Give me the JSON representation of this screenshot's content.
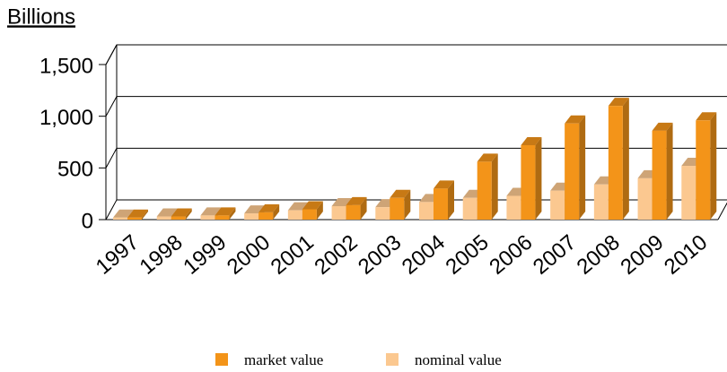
{
  "chart_data": {
    "type": "bar3d",
    "y_label": "Billions",
    "categories": [
      "1997",
      "1998",
      "1999",
      "2000",
      "2001",
      "2002",
      "2003",
      "2004",
      "2005",
      "2006",
      "2007",
      "2008",
      "2009",
      "2010"
    ],
    "series": [
      {
        "name": "market value",
        "color": "#f39419",
        "values": [
          20,
          30,
          40,
          70,
          100,
          140,
          210,
          300,
          560,
          720,
          930,
          1100,
          860,
          960
        ]
      },
      {
        "name": "nominal value",
        "color": "#fbc890",
        "values": [
          20,
          30,
          40,
          60,
          90,
          130,
          120,
          170,
          210,
          230,
          280,
          340,
          400,
          520
        ]
      }
    ],
    "ylim": [
      0,
      1500
    ],
    "yticks": [
      0,
      500,
      {
        "value": 1000,
        "label": "1,000"
      },
      {
        "value": 1500,
        "label": "1,500"
      }
    ],
    "grid": true,
    "legend": "bottom"
  }
}
